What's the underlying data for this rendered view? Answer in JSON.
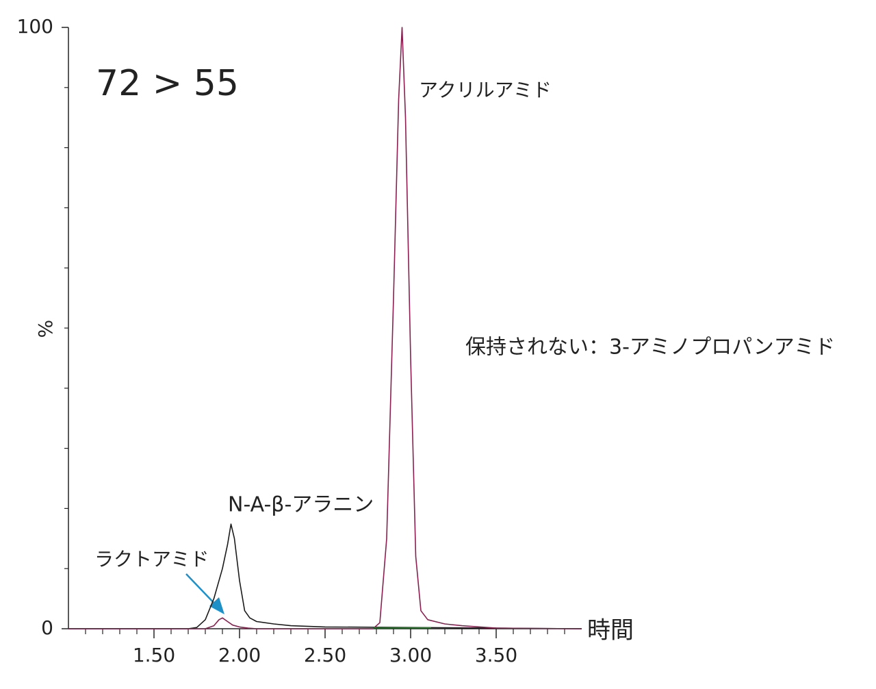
{
  "chart_data": {
    "type": "line",
    "ylabel": "%",
    "xlabel": "時間",
    "annotations": [
      "72 > 55",
      "アクリルアミド",
      "保持されない：3-アミノプロパンアミド",
      "N-A-β-アラニン",
      "ラクトアミド"
    ],
    "xlim": [
      1.0,
      4.0
    ],
    "xticks": [
      {
        "value": 1.5,
        "label": "1.50"
      },
      {
        "value": 2.0,
        "label": "2.00"
      },
      {
        "value": 2.5,
        "label": "2.50"
      },
      {
        "value": 3.0,
        "label": "3.00"
      },
      {
        "value": 3.5,
        "label": "3.50"
      }
    ],
    "x_minor_ticks": [
      1.1,
      1.2,
      1.3,
      1.4,
      1.6,
      1.7,
      1.8,
      1.9,
      2.1,
      2.2,
      2.3,
      2.4,
      2.6,
      2.7,
      2.8,
      2.9,
      3.1,
      3.2,
      3.3,
      3.4,
      3.6,
      3.7,
      3.8,
      3.9
    ],
    "ylim": [
      0,
      100
    ],
    "yticks": [
      0,
      100
    ],
    "y_minor_ticks": [
      10,
      20,
      30,
      40,
      50,
      60,
      70,
      80,
      90
    ],
    "series": [
      {
        "color": "#1a1a1a",
        "x": [
          1.0,
          1.6,
          1.7,
          1.75,
          1.8,
          1.85,
          1.9,
          1.93,
          1.95,
          1.97,
          2.0,
          2.03,
          2.06,
          2.1,
          2.2,
          2.3,
          2.5,
          3.0,
          3.5,
          4.0
        ],
        "values": [
          0,
          0,
          0,
          0.2,
          1.5,
          5,
          10,
          14,
          17.4,
          15,
          8,
          3,
          1.8,
          1.2,
          0.8,
          0.5,
          0.3,
          0.2,
          0.1,
          0
        ]
      },
      {
        "color": "#8a1f4f",
        "x": [
          1.0,
          1.5,
          1.8,
          1.85,
          1.88,
          1.9,
          1.93,
          1.96,
          2.0,
          2.05,
          2.1,
          2.5,
          2.78,
          2.82,
          2.86,
          2.9,
          2.93,
          2.95,
          2.97,
          3.0,
          3.03,
          3.06,
          3.1,
          3.2,
          3.3,
          3.5,
          4.0
        ],
        "values": [
          0,
          0,
          0,
          0.5,
          1.5,
          1.8,
          1.2,
          0.6,
          0.3,
          0.1,
          0,
          0,
          0,
          1,
          15,
          55,
          88,
          100,
          85,
          45,
          12,
          3,
          1.5,
          0.8,
          0.5,
          0.1,
          0
        ]
      },
      {
        "color": "#2e7d32",
        "x": [
          2.78,
          3.12
        ],
        "values": [
          0.15,
          0.15
        ]
      }
    ]
  }
}
